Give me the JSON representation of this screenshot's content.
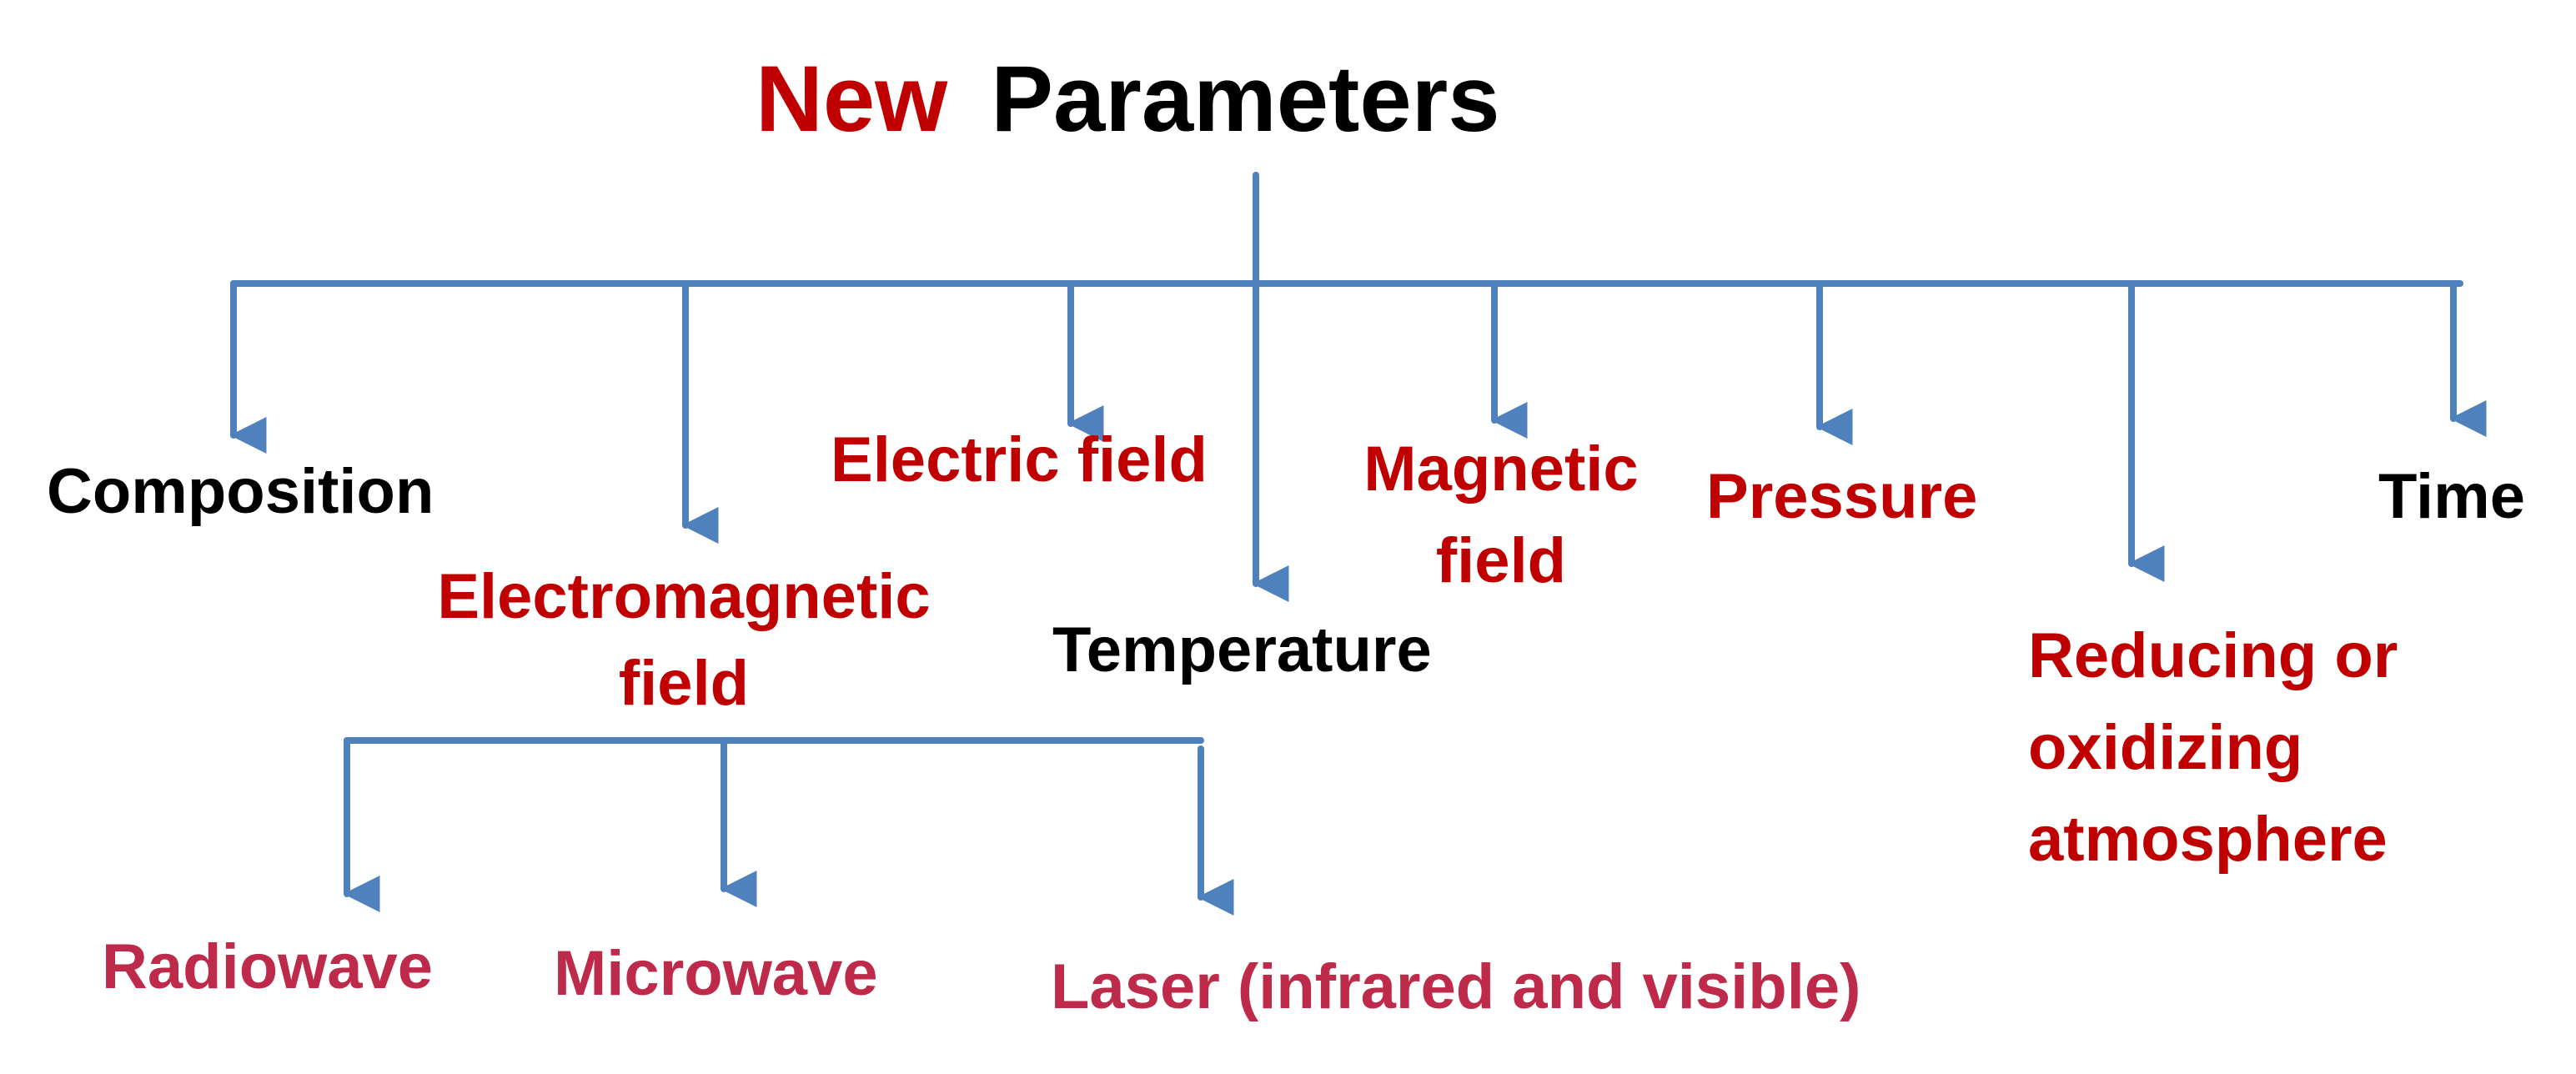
{
  "title": {
    "word1": "New",
    "word2": "Parameters"
  },
  "parameters": [
    {
      "id": "composition",
      "label": "Composition"
    },
    {
      "id": "electromagnetic",
      "line1": "Electromagnetic",
      "line2": "field"
    },
    {
      "id": "electric",
      "label": "Electric field"
    },
    {
      "id": "temperature",
      "label": "Temperature"
    },
    {
      "id": "magnetic",
      "line1": "Magnetic",
      "line2": "field"
    },
    {
      "id": "pressure",
      "label": "Pressure"
    },
    {
      "id": "atmosphere",
      "line1": "Reducing or",
      "line2": "oxidizing",
      "line3": "atmosphere"
    },
    {
      "id": "time",
      "label": "Time"
    }
  ],
  "em_subtypes": [
    {
      "id": "radiowave",
      "label": "Radiowave"
    },
    {
      "id": "microwave",
      "label": "Microwave"
    },
    {
      "id": "laser",
      "label": "Laser (infrared and visible)"
    }
  ],
  "colors": {
    "connector": "#4f81bd",
    "black_text": "#000000",
    "red_text": "#c00000",
    "crimson_text": "#be2a4a"
  }
}
